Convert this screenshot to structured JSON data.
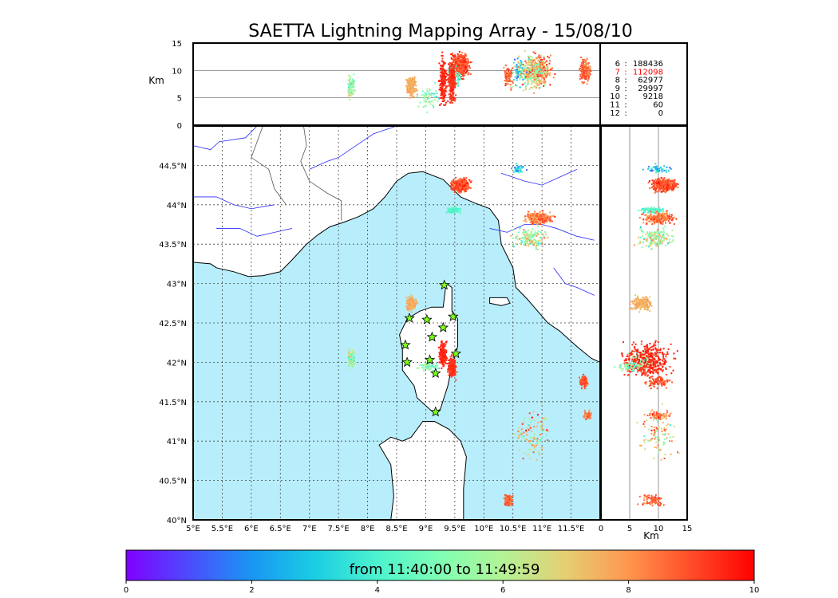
{
  "chart_data": {
    "type": "scatter",
    "title": "SAETTA Lightning Mapping Array - 15/08/10",
    "colorbar": {
      "label": "from 11:40:00 to 11:49:59",
      "range": [
        0,
        10
      ],
      "ticks": [
        "0",
        "2",
        "4",
        "6",
        "8",
        "10"
      ],
      "colormap": "rainbow"
    },
    "map": {
      "lon_range": [
        5.0,
        12.0
      ],
      "lat_range": [
        40.0,
        45.0
      ],
      "lon_ticks": [
        {
          "v": 5.0,
          "label": "5°E"
        },
        {
          "v": 5.5,
          "label": "5.5°E"
        },
        {
          "v": 6.0,
          "label": "6°E"
        },
        {
          "v": 6.5,
          "label": "6.5°E"
        },
        {
          "v": 7.0,
          "label": "7°E"
        },
        {
          "v": 7.5,
          "label": "7.5°E"
        },
        {
          "v": 8.0,
          "label": "8°E"
        },
        {
          "v": 8.5,
          "label": "8.5°E"
        },
        {
          "v": 9.0,
          "label": "9°E"
        },
        {
          "v": 9.5,
          "label": "9.5°E"
        },
        {
          "v": 10.0,
          "label": "10°E"
        },
        {
          "v": 10.5,
          "label": "10.5°E"
        },
        {
          "v": 11.0,
          "label": "11°E"
        },
        {
          "v": 11.5,
          "label": "11.5°E"
        }
      ],
      "lat_ticks": [
        {
          "v": 40.0,
          "label": "40°N"
        },
        {
          "v": 40.5,
          "label": "40.5°N"
        },
        {
          "v": 41.0,
          "label": "41°N"
        },
        {
          "v": 41.5,
          "label": "41.5°N"
        },
        {
          "v": 42.0,
          "label": "42°N"
        },
        {
          "v": 42.5,
          "label": "42.5°N"
        },
        {
          "v": 43.0,
          "label": "43°N"
        },
        {
          "v": 43.5,
          "label": "43.5°N"
        },
        {
          "v": 44.0,
          "label": "44°N"
        },
        {
          "v": 44.5,
          "label": "44.5°N"
        }
      ],
      "stations": [
        [
          8.72,
          42.56
        ],
        [
          9.02,
          42.54
        ],
        [
          9.32,
          42.98
        ],
        [
          9.47,
          42.58
        ],
        [
          9.3,
          42.44
        ],
        [
          9.11,
          42.32
        ],
        [
          8.65,
          42.22
        ],
        [
          9.52,
          42.11
        ],
        [
          9.07,
          42.03
        ],
        [
          8.68,
          42.0
        ],
        [
          9.17,
          41.86
        ],
        [
          9.17,
          41.37
        ]
      ]
    },
    "alt_lon_panel": {
      "ylabel": "Km",
      "y_range": [
        0,
        15
      ],
      "y_ticks": [
        "0",
        "5",
        "10",
        "15"
      ]
    },
    "lat_alt_panel": {
      "xlabel": "Km",
      "x_range": [
        0,
        15
      ],
      "x_ticks": [
        "0",
        "5",
        "10",
        "15"
      ]
    },
    "station_counts": [
      {
        "stations": "6",
        "count": "188436",
        "highlight": false
      },
      {
        "stations": "7",
        "count": "112098",
        "highlight": true
      },
      {
        "stations": "8",
        "count": "62977",
        "highlight": false
      },
      {
        "stations": "9",
        "count": "29997",
        "highlight": false
      },
      {
        "stations": "10",
        "count": "9218",
        "highlight": false
      },
      {
        "stations": "11",
        "count": "60",
        "highlight": false
      },
      {
        "stations": "12",
        "count": "0",
        "highlight": false
      }
    ],
    "clusters": [
      {
        "lon": 9.6,
        "lat": 44.25,
        "slon": 0.14,
        "slat": 0.07,
        "alt": 11.0,
        "salt": 2.0,
        "t": 9.0,
        "st": 0.9,
        "n": 450
      },
      {
        "lon": 9.47,
        "lat": 43.93,
        "slon": 0.12,
        "slat": 0.04,
        "alt": 9.0,
        "salt": 2.0,
        "t": 4.2,
        "st": 0.6,
        "n": 90
      },
      {
        "lon": 10.95,
        "lat": 43.83,
        "slon": 0.22,
        "slat": 0.07,
        "alt": 10.0,
        "salt": 2.5,
        "t": 8.5,
        "st": 1.2,
        "n": 220
      },
      {
        "lon": 10.8,
        "lat": 43.58,
        "slon": 0.28,
        "slat": 0.12,
        "alt": 9.5,
        "salt": 3.0,
        "t": 6.0,
        "st": 2.5,
        "n": 160
      },
      {
        "lon": 10.6,
        "lat": 44.45,
        "slon": 0.1,
        "slat": 0.05,
        "alt": 10.0,
        "salt": 2.0,
        "t": 3.0,
        "st": 2.0,
        "n": 50
      },
      {
        "lon": 8.75,
        "lat": 42.75,
        "slon": 0.08,
        "slat": 0.09,
        "alt": 7.0,
        "salt": 2.0,
        "t": 7.6,
        "st": 0.5,
        "n": 170
      },
      {
        "lon": 9.45,
        "lat": 41.95,
        "slon": 0.06,
        "slat": 0.12,
        "alt": 8.0,
        "salt": 3.5,
        "t": 9.4,
        "st": 0.5,
        "n": 260
      },
      {
        "lon": 7.72,
        "lat": 42.05,
        "slon": 0.06,
        "slat": 0.12,
        "alt": 7.0,
        "salt": 2.0,
        "t": 5.5,
        "st": 2.0,
        "n": 90
      },
      {
        "lon": 11.72,
        "lat": 41.75,
        "slon": 0.06,
        "slat": 0.07,
        "alt": 10.0,
        "salt": 2.0,
        "t": 9.0,
        "st": 0.6,
        "n": 90
      },
      {
        "lon": 11.78,
        "lat": 41.33,
        "slon": 0.06,
        "slat": 0.05,
        "alt": 10.0,
        "salt": 2.0,
        "t": 8.5,
        "st": 0.8,
        "n": 60
      },
      {
        "lon": 10.42,
        "lat": 40.25,
        "slon": 0.07,
        "slat": 0.07,
        "alt": 9.0,
        "salt": 2.0,
        "t": 8.8,
        "st": 0.9,
        "n": 80
      },
      {
        "lon": 9.05,
        "lat": 41.95,
        "slon": 0.15,
        "slat": 0.05,
        "alt": 5.0,
        "salt": 2.0,
        "t": 5.0,
        "st": 1.5,
        "n": 60
      },
      {
        "lon": 9.3,
        "lat": 42.1,
        "slon": 0.06,
        "slat": 0.15,
        "alt": 8.0,
        "salt": 4.0,
        "t": 9.5,
        "st": 0.4,
        "n": 200
      },
      {
        "lon": 10.85,
        "lat": 41.1,
        "slon": 0.3,
        "slat": 0.3,
        "alt": 10.0,
        "salt": 3.0,
        "t": 7.0,
        "st": 3.0,
        "n": 100
      }
    ]
  }
}
